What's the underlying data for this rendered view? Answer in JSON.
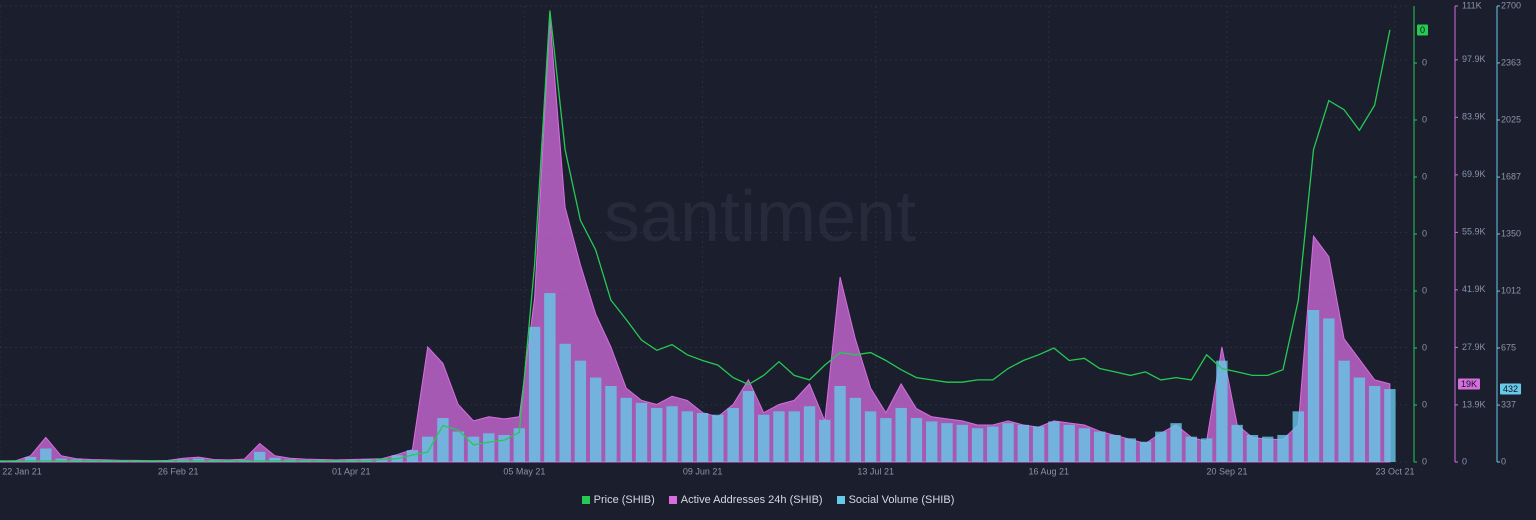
{
  "chart_data": {
    "type": "multi-axis",
    "watermark": "santiment",
    "background": "#1b1e2d",
    "grid": true,
    "x": [
      "2021-01-22",
      "2021-01-25",
      "2021-01-28",
      "2021-01-31",
      "2021-02-03",
      "2021-02-06",
      "2021-02-09",
      "2021-02-12",
      "2021-02-15",
      "2021-02-18",
      "2021-02-21",
      "2021-02-24",
      "2021-02-27",
      "2021-03-02",
      "2021-03-05",
      "2021-03-08",
      "2021-03-11",
      "2021-03-14",
      "2021-03-17",
      "2021-03-20",
      "2021-03-23",
      "2021-03-26",
      "2021-03-29",
      "2021-04-01",
      "2021-04-04",
      "2021-04-07",
      "2021-04-10",
      "2021-04-13",
      "2021-04-16",
      "2021-04-19",
      "2021-04-22",
      "2021-04-25",
      "2021-04-28",
      "2021-05-01",
      "2021-05-04",
      "2021-05-07",
      "2021-05-10",
      "2021-05-13",
      "2021-05-16",
      "2021-05-19",
      "2021-05-22",
      "2021-05-25",
      "2021-05-28",
      "2021-05-31",
      "2021-06-03",
      "2021-06-06",
      "2021-06-09",
      "2021-06-12",
      "2021-06-15",
      "2021-06-18",
      "2021-06-21",
      "2021-06-24",
      "2021-06-27",
      "2021-06-30",
      "2021-07-03",
      "2021-07-06",
      "2021-07-09",
      "2021-07-12",
      "2021-07-15",
      "2021-07-18",
      "2021-07-21",
      "2021-07-24",
      "2021-07-27",
      "2021-07-30",
      "2021-08-02",
      "2021-08-05",
      "2021-08-08",
      "2021-08-11",
      "2021-08-14",
      "2021-08-17",
      "2021-08-20",
      "2021-08-23",
      "2021-08-26",
      "2021-08-29",
      "2021-09-01",
      "2021-09-04",
      "2021-09-07",
      "2021-09-10",
      "2021-09-13",
      "2021-09-16",
      "2021-09-19",
      "2021-09-22",
      "2021-09-25",
      "2021-09-28",
      "2021-10-01",
      "2021-10-04",
      "2021-10-07",
      "2021-10-10",
      "2021-10-13",
      "2021-10-16",
      "2021-10-19",
      "2021-10-22"
    ],
    "xlim": [
      "2021-01-22",
      "2021-10-23"
    ],
    "xticks": [
      {
        "value": "2021-01-22",
        "label": "22 Jan 21"
      },
      {
        "value": "2021-02-26",
        "label": "26 Feb 21"
      },
      {
        "value": "2021-04-01",
        "label": "01 Apr 21"
      },
      {
        "value": "2021-05-05",
        "label": "05 May 21"
      },
      {
        "value": "2021-06-09",
        "label": "09 Jun 21"
      },
      {
        "value": "2021-07-13",
        "label": "13 Jul 21"
      },
      {
        "value": "2021-08-16",
        "label": "16 Aug 21"
      },
      {
        "value": "2021-09-20",
        "label": "20 Sep 21"
      },
      {
        "value": "2021-10-23",
        "label": "23 Oct 21"
      }
    ],
    "ylim": [
      0,
      4e-05
    ],
    "yticks": [
      0,
      {
        "value": 5e-06,
        "label": "0"
      },
      {
        "value": 1e-05,
        "label": "0"
      },
      {
        "value": 1.5e-05,
        "label": "0"
      },
      {
        "value": 2e-05,
        "label": "0"
      },
      {
        "value": 2.5e-05,
        "label": "0"
      },
      {
        "value": 3e-05,
        "label": "0"
      },
      {
        "value": 3.5e-05,
        "label": "0"
      }
    ],
    "y2lim": [
      0,
      111000
    ],
    "y2ticks": [
      0,
      {
        "value": 13900,
        "label": "13.9K"
      },
      {
        "value": 27900,
        "label": "27.9K"
      },
      {
        "value": 41900,
        "label": "41.9K"
      },
      {
        "value": 55900,
        "label": "55.9K"
      },
      {
        "value": 69900,
        "label": "69.9K"
      },
      {
        "value": 83900,
        "label": "83.9K"
      },
      {
        "value": 97900,
        "label": "97.9K"
      },
      {
        "value": 111000,
        "label": "111K"
      }
    ],
    "y3lim": [
      0,
      2700
    ],
    "y3ticks": [
      0,
      337,
      675,
      1012,
      1350,
      1687,
      2025,
      2363,
      2700
    ],
    "series": [
      {
        "name": "Price (SHIB)",
        "color": "#26c953",
        "kind": "line",
        "axis": "y",
        "badge": "0",
        "values": [
          1e-07,
          1e-07,
          1e-07,
          1e-07,
          1e-07,
          1e-07,
          1e-07,
          1e-07,
          1e-07,
          1e-07,
          1e-07,
          1e-07,
          1e-07,
          1e-07,
          1e-07,
          1e-07,
          1e-07,
          1e-07,
          1e-07,
          1e-07,
          1e-07,
          1e-07,
          1e-07,
          1e-07,
          1e-07,
          2e-07,
          3e-07,
          6.1e-07,
          8.8e-07,
          3.2e-06,
          2.8e-06,
          1.5e-06,
          1.75e-06,
          1.9e-06,
          2.6e-06,
          1.73e-05,
          3.96e-05,
          2.74e-05,
          2.12e-05,
          1.86e-05,
          1.42e-05,
          1.25e-05,
          1.07e-05,
          9.8e-06,
          1.03e-05,
          9.4e-06,
          8.9e-06,
          8.5e-06,
          7.4e-06,
          6.8e-06,
          7.6e-06,
          8.8e-06,
          7.6e-06,
          7.2e-06,
          8.5e-06,
          9.6e-06,
          9.4e-06,
          9.6e-06,
          8.9e-06,
          8.1e-06,
          7.4e-06,
          7.2e-06,
          7e-06,
          7e-06,
          7.2e-06,
          7.2e-06,
          8.2e-06,
          8.9e-06,
          9.4e-06,
          1e-05,
          8.9e-06,
          9.1e-06,
          8.2e-06,
          7.9e-06,
          7.6e-06,
          7.9e-06,
          7.2e-06,
          7.4e-06,
          7.2e-06,
          9.4e-06,
          8.2e-06,
          7.9e-06,
          7.6e-06,
          7.6e-06,
          8.1e-06,
          1.42e-05,
          2.74e-05,
          3.17e-05,
          3.09e-05,
          2.91e-05,
          3.13e-05,
          3.79e-05
        ]
      },
      {
        "name": "Active Addresses 24h (SHIB)",
        "color": "#d66ee0",
        "kind": "area",
        "axis": "y2",
        "badge": "19K",
        "values": [
          200,
          300,
          1500,
          6000,
          1500,
          800,
          600,
          500,
          400,
          400,
          300,
          400,
          900,
          1200,
          600,
          500,
          700,
          4500,
          1500,
          900,
          700,
          600,
          500,
          600,
          700,
          800,
          1800,
          3000,
          28000,
          24000,
          14000,
          10000,
          11000,
          10500,
          11000,
          40000,
          108000,
          62000,
          48000,
          36000,
          28000,
          18000,
          15000,
          14000,
          16000,
          15000,
          12000,
          11000,
          14000,
          20000,
          12000,
          14000,
          15000,
          19000,
          10000,
          45000,
          30000,
          18000,
          12000,
          19000,
          13000,
          11000,
          10500,
          10000,
          9000,
          9000,
          10000,
          9000,
          8500,
          10000,
          9500,
          9000,
          7500,
          6500,
          5500,
          4500,
          7000,
          9000,
          6000,
          5000,
          28000,
          9000,
          6000,
          5500,
          5500,
          9000,
          55000,
          50000,
          30000,
          25000,
          20000,
          19000
        ]
      },
      {
        "name": "Social Volume (SHIB)",
        "color": "#68c8e8",
        "kind": "bar",
        "axis": "y3",
        "badge": "432",
        "values": [
          5,
          8,
          30,
          80,
          20,
          15,
          10,
          10,
          8,
          8,
          8,
          10,
          15,
          20,
          12,
          10,
          12,
          60,
          25,
          15,
          12,
          10,
          10,
          12,
          15,
          20,
          40,
          70,
          150,
          260,
          180,
          150,
          170,
          160,
          200,
          800,
          1000,
          700,
          600,
          500,
          450,
          380,
          350,
          320,
          330,
          300,
          290,
          280,
          320,
          420,
          280,
          300,
          300,
          330,
          250,
          450,
          380,
          300,
          260,
          320,
          260,
          240,
          230,
          220,
          200,
          210,
          230,
          220,
          210,
          240,
          220,
          200,
          180,
          160,
          140,
          120,
          180,
          230,
          150,
          140,
          600,
          220,
          160,
          150,
          160,
          300,
          900,
          850,
          600,
          500,
          450,
          432
        ]
      }
    ]
  }
}
